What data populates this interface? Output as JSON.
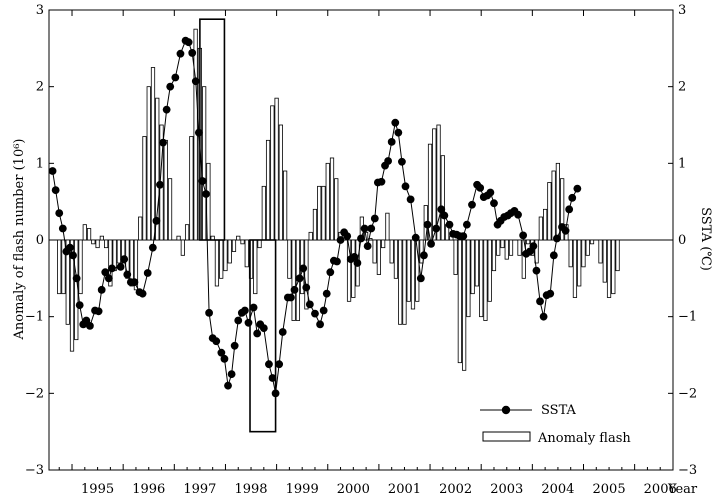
{
  "chart_data": {
    "type": "bar",
    "xlabel": "Year",
    "ylabel_left": "Anomaly of flash number (10⁶)",
    "ylabel_right": "SSTA (℃)",
    "xlim": [
      1994.55,
      2006.75
    ],
    "ylim_left": [
      -3,
      3
    ],
    "ylim_right": [
      -3,
      3
    ],
    "yticks": [
      "−3",
      "−2",
      "−1",
      "0",
      "1",
      "2",
      "3"
    ],
    "year_labels": [
      "1995",
      "1996",
      "1997",
      "1998",
      "1999",
      "2000",
      "2001",
      "2002",
      "2003",
      "2004",
      "2005",
      "2006"
    ],
    "legend": {
      "placement": "bottom-right",
      "ssta_label": "SSTA",
      "flash_label": "Anomaly flash"
    },
    "highlight_boxes": [
      {
        "x0": 1997.5,
        "x1": 1997.98,
        "y0": 0,
        "y1": 2.88
      },
      {
        "x0": 1998.48,
        "x1": 1998.98,
        "y0": -2.5,
        "y1": 0
      }
    ],
    "series": [
      {
        "name": "Anomaly flash",
        "kind": "bar",
        "start": 1994.75,
        "step": 0.08333,
        "values": [
          -0.7,
          -0.7,
          -1.1,
          -1.45,
          -1.3,
          -0.7,
          0.2,
          0.15,
          -0.05,
          -0.1,
          0.05,
          -0.1,
          -0.6,
          -0.4,
          -0.3,
          -0.3,
          -0.5,
          -0.6,
          -0.65,
          0.3,
          1.35,
          2.0,
          2.25,
          1.85,
          1.5,
          1.3,
          0.8,
          0.0,
          0.05,
          -0.2,
          0.2,
          1.35,
          2.75,
          2.5,
          2.0,
          1.0,
          0.05,
          -0.6,
          -0.5,
          -0.4,
          -0.3,
          -0.15,
          0.05,
          -0.05,
          -0.35,
          -0.5,
          -0.7,
          -0.1,
          0.7,
          1.3,
          1.75,
          1.85,
          1.5,
          0.9,
          -0.5,
          -1.05,
          -1.05,
          -0.7,
          -0.9,
          0.1,
          0.4,
          0.7,
          0.7,
          1.0,
          1.07,
          0.8,
          0.1,
          0.0,
          -0.8,
          -0.75,
          -0.6,
          0.3,
          0.1,
          0.02,
          -0.3,
          -0.45,
          -0.1,
          0.35,
          -0.3,
          -0.5,
          -1.1,
          -1.1,
          -0.8,
          -0.9,
          -0.8,
          -0.3,
          0.45,
          1.25,
          1.45,
          1.5,
          1.1,
          0.2,
          0.05,
          -0.45,
          -1.6,
          -1.7,
          -1.0,
          -0.7,
          -0.6,
          -1.0,
          -1.05,
          -0.8,
          -0.4,
          -0.2,
          -0.1,
          -0.25,
          -0.2,
          0.0,
          -0.2,
          -0.5,
          -0.05,
          -0.2,
          -0.3,
          0.3,
          0.4,
          0.75,
          0.9,
          1.0,
          0.8,
          0.2,
          -0.35,
          -0.75,
          -0.6,
          -0.35,
          -0.2,
          -0.05,
          0.0,
          -0.3,
          -0.55,
          -0.75,
          -0.7,
          -0.4
        ]
      },
      {
        "name": "SSTA",
        "kind": "line-marker",
        "points": [
          [
            1994.62,
            0.9
          ],
          [
            1994.68,
            0.65
          ],
          [
            1994.75,
            0.35
          ],
          [
            1994.82,
            0.15
          ],
          [
            1994.89,
            -0.15
          ],
          [
            1994.96,
            -0.1
          ],
          [
            1995.02,
            -0.2
          ],
          [
            1995.09,
            -0.5
          ],
          [
            1995.15,
            -0.85
          ],
          [
            1995.22,
            -1.1
          ],
          [
            1995.28,
            -1.05
          ],
          [
            1995.35,
            -1.12
          ],
          [
            1995.45,
            -0.92
          ],
          [
            1995.52,
            -0.93
          ],
          [
            1995.58,
            -0.65
          ],
          [
            1995.65,
            -0.42
          ],
          [
            1995.72,
            -0.5
          ],
          [
            1995.78,
            -0.37
          ],
          [
            1995.95,
            -0.35
          ],
          [
            1996.02,
            -0.25
          ],
          [
            1996.08,
            -0.45
          ],
          [
            1996.15,
            -0.55
          ],
          [
            1996.22,
            -0.55
          ],
          [
            1996.32,
            -0.68
          ],
          [
            1996.38,
            -0.7
          ],
          [
            1996.48,
            -0.43
          ],
          [
            1996.58,
            -0.1
          ],
          [
            1996.65,
            0.25
          ],
          [
            1996.72,
            0.72
          ],
          [
            1996.78,
            1.27
          ],
          [
            1996.85,
            1.7
          ],
          [
            1996.92,
            2.0
          ],
          [
            1997.02,
            2.12
          ],
          [
            1997.12,
            2.43
          ],
          [
            1997.22,
            2.6
          ],
          [
            1997.28,
            2.58
          ],
          [
            1997.35,
            2.44
          ],
          [
            1997.42,
            2.07
          ],
          [
            1997.48,
            1.4
          ],
          [
            1997.55,
            0.77
          ],
          [
            1997.62,
            0.6
          ],
          [
            1997.68,
            -0.95
          ],
          [
            1997.75,
            -1.28
          ],
          [
            1997.82,
            -1.32
          ],
          [
            1997.92,
            -1.47
          ],
          [
            1997.98,
            -1.55
          ],
          [
            1998.05,
            -1.9
          ],
          [
            1998.12,
            -1.75
          ],
          [
            1998.18,
            -1.38
          ],
          [
            1998.25,
            -1.05
          ],
          [
            1998.32,
            -0.95
          ],
          [
            1998.38,
            -0.92
          ],
          [
            1998.45,
            -1.08
          ],
          [
            1998.55,
            -0.88
          ],
          [
            1998.62,
            -1.22
          ],
          [
            1998.68,
            -1.1
          ],
          [
            1998.75,
            -1.15
          ],
          [
            1998.85,
            -1.62
          ],
          [
            1998.92,
            -1.8
          ],
          [
            1998.98,
            -2.0
          ],
          [
            1999.05,
            -1.62
          ],
          [
            1999.12,
            -1.2
          ],
          [
            1999.22,
            -0.75
          ],
          [
            1999.28,
            -0.75
          ],
          [
            1999.35,
            -0.65
          ],
          [
            1999.45,
            -0.5
          ],
          [
            1999.52,
            -0.37
          ],
          [
            1999.58,
            -0.62
          ],
          [
            1999.65,
            -0.84
          ],
          [
            1999.75,
            -0.96
          ],
          [
            1999.85,
            -1.1
          ],
          [
            1999.92,
            -0.92
          ],
          [
            1999.98,
            -0.7
          ],
          [
            2000.05,
            -0.42
          ],
          [
            2000.12,
            -0.27
          ],
          [
            2000.18,
            -0.28
          ],
          [
            2000.25,
            0.0
          ],
          [
            2000.32,
            0.1
          ],
          [
            2000.38,
            0.05
          ],
          [
            2000.45,
            -0.25
          ],
          [
            2000.52,
            -0.22
          ],
          [
            2000.58,
            -0.3
          ],
          [
            2000.65,
            0.02
          ],
          [
            2000.72,
            0.15
          ],
          [
            2000.78,
            -0.08
          ],
          [
            2000.85,
            0.15
          ],
          [
            2000.92,
            0.28
          ],
          [
            2000.98,
            0.75
          ],
          [
            2001.05,
            0.76
          ],
          [
            2001.12,
            0.97
          ],
          [
            2001.18,
            1.03
          ],
          [
            2001.25,
            1.28
          ],
          [
            2001.32,
            1.53
          ],
          [
            2001.38,
            1.4
          ],
          [
            2001.45,
            1.02
          ],
          [
            2001.52,
            0.7
          ],
          [
            2001.62,
            0.53
          ],
          [
            2001.72,
            0.03
          ],
          [
            2001.82,
            -0.5
          ],
          [
            2001.88,
            -0.2
          ],
          [
            2001.95,
            0.2
          ],
          [
            2002.02,
            -0.05
          ],
          [
            2002.12,
            0.15
          ],
          [
            2002.22,
            0.4
          ],
          [
            2002.28,
            0.32
          ],
          [
            2002.38,
            0.2
          ],
          [
            2002.45,
            0.08
          ],
          [
            2002.52,
            0.07
          ],
          [
            2002.58,
            0.05
          ],
          [
            2002.65,
            0.05
          ],
          [
            2002.72,
            0.2
          ],
          [
            2002.82,
            0.46
          ],
          [
            2002.92,
            0.72
          ],
          [
            2002.98,
            0.68
          ],
          [
            2003.05,
            0.56
          ],
          [
            2003.12,
            0.58
          ],
          [
            2003.18,
            0.62
          ],
          [
            2003.25,
            0.48
          ],
          [
            2003.32,
            0.2
          ],
          [
            2003.38,
            0.25
          ],
          [
            2003.45,
            0.3
          ],
          [
            2003.52,
            0.32
          ],
          [
            2003.58,
            0.35
          ],
          [
            2003.65,
            0.38
          ],
          [
            2003.72,
            0.33
          ],
          [
            2003.82,
            0.06
          ],
          [
            2003.88,
            -0.18
          ],
          [
            2003.95,
            -0.15
          ],
          [
            2004.02,
            -0.08
          ],
          [
            2004.08,
            -0.4
          ],
          [
            2004.15,
            -0.8
          ],
          [
            2004.22,
            -1.0
          ],
          [
            2004.28,
            -0.72
          ],
          [
            2004.35,
            -0.7
          ],
          [
            2004.42,
            -0.2
          ],
          [
            2004.48,
            0.02
          ],
          [
            2004.58,
            0.17
          ],
          [
            2004.65,
            0.12
          ],
          [
            2004.72,
            0.4
          ],
          [
            2004.78,
            0.55
          ],
          [
            2004.88,
            0.67
          ]
        ]
      }
    ]
  }
}
